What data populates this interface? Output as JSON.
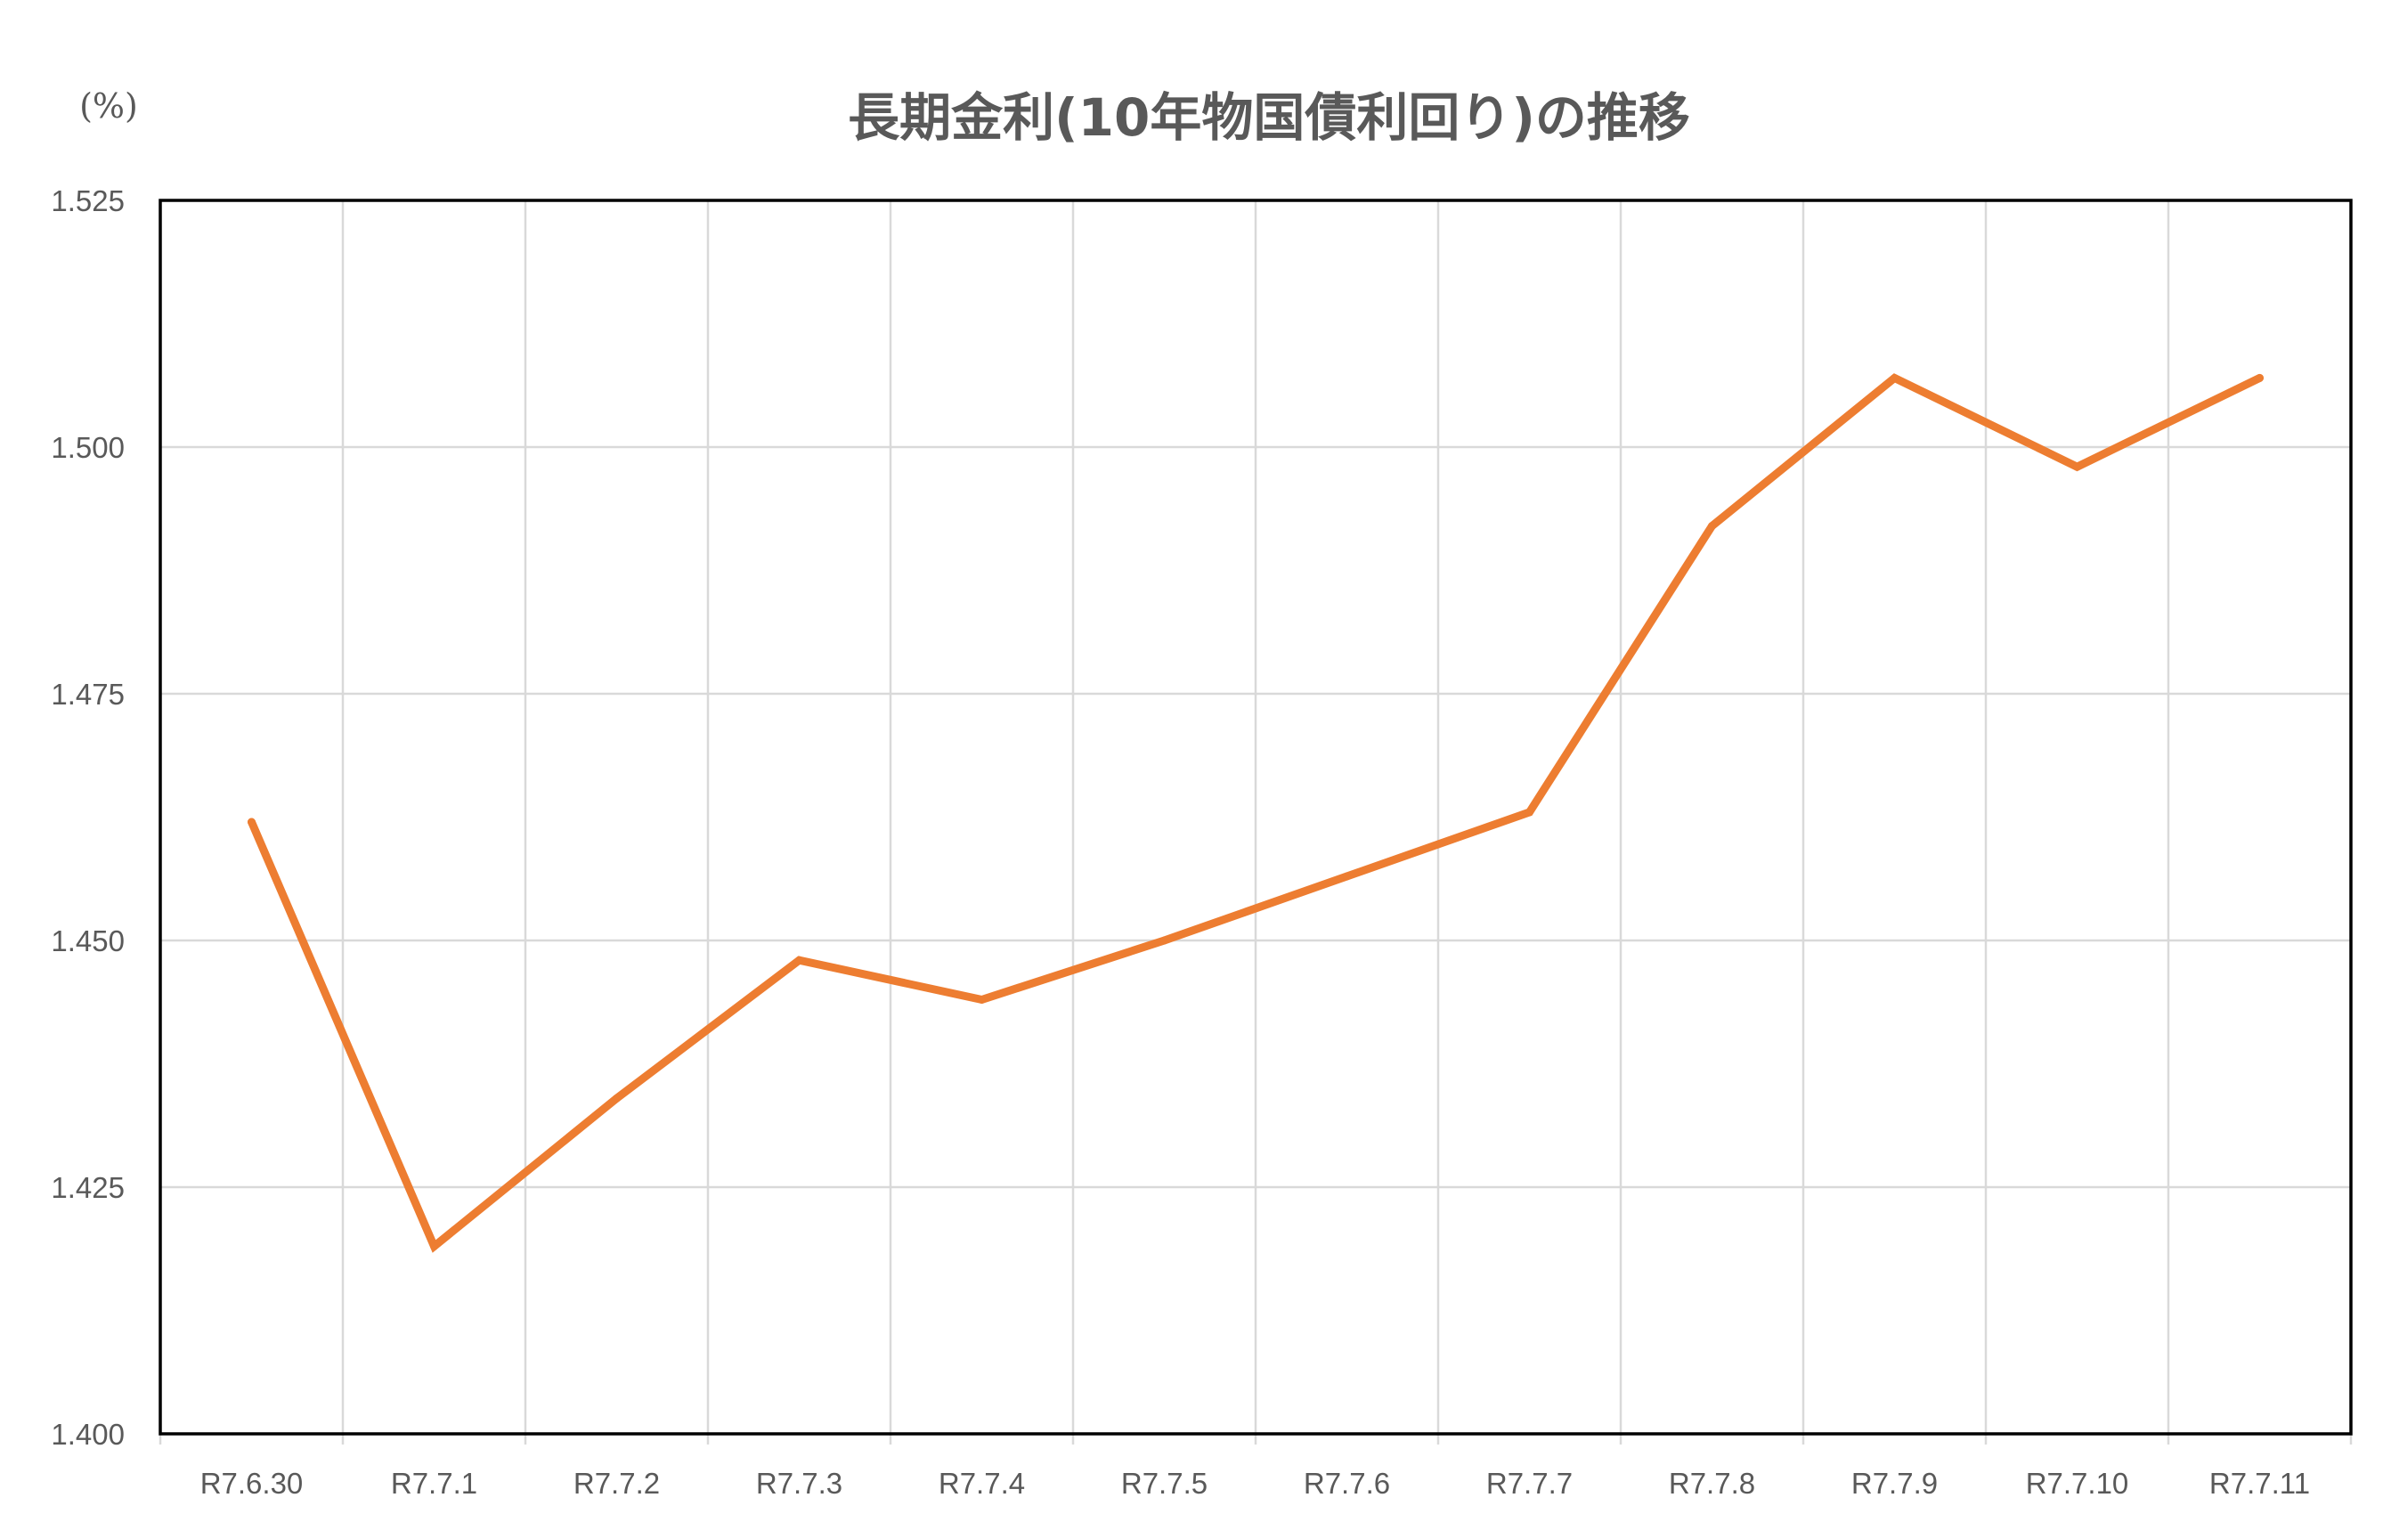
{
  "chart_data": {
    "type": "line",
    "title": "長期金利(10年物国債利回り)の推移",
    "ylabel": "(%)",
    "xlabel": "",
    "categories": [
      "R7.6.30",
      "R7.7.1",
      "R7.7.2",
      "R7.7.3",
      "R7.7.4",
      "R7.7.5",
      "R7.7.6",
      "R7.7.7",
      "R7.7.8",
      "R7.7.9",
      "R7.7.10",
      "R7.7.11"
    ],
    "yticks": [
      "1.400",
      "1.425",
      "1.450",
      "1.475",
      "1.500",
      "1.525"
    ],
    "ylim": [
      1.4,
      1.525
    ],
    "grid": true,
    "legend": "none",
    "series": [
      {
        "values": [
          1.462,
          1.419,
          1.434,
          1.448,
          1.444,
          1.45,
          1.4565,
          1.463,
          1.492,
          1.507,
          1.498,
          1.507
        ],
        "color": "#ED7D31"
      }
    ]
  }
}
